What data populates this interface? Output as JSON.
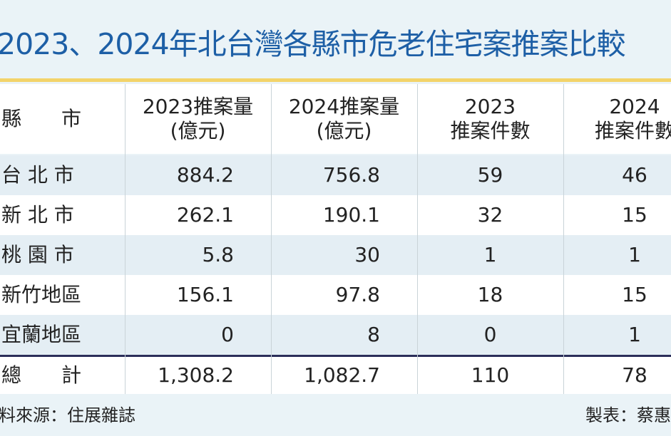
{
  "header": {
    "title": "2023、2024年北台灣各縣市危老住宅案推案比較"
  },
  "table": {
    "headers": [
      [
        "縣　　市"
      ],
      [
        "2023推案量",
        "(億元)"
      ],
      [
        "2024推案量",
        "(億元)"
      ],
      [
        "2023",
        "推案件數"
      ],
      [
        "2024",
        "推案件數"
      ]
    ],
    "rows": [
      [
        "台 北 市",
        "884.2",
        "756.8",
        "59",
        "46"
      ],
      [
        "新 北 市",
        "262.1",
        "190.1",
        "32",
        "15"
      ],
      [
        "桃 園 市",
        "5.8",
        "30",
        "1",
        "1"
      ],
      [
        "新竹地區",
        "156.1",
        "97.8",
        "18",
        "15"
      ],
      [
        "宜蘭地區",
        "0",
        "8",
        "0",
        "1"
      ]
    ],
    "total": [
      "總　　計",
      "1,308.2",
      "1,082.7",
      "110",
      "78"
    ]
  },
  "footer": {
    "source": "料來源：住展雜誌",
    "credit": "製表：蔡惠"
  }
}
